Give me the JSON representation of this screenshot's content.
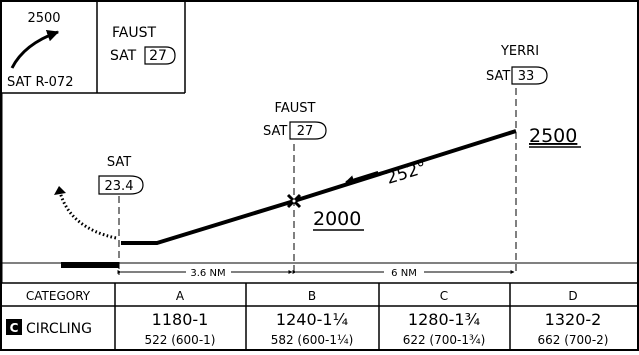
{
  "inset": {
    "altitude": "2500",
    "radial": "SAT R-072",
    "fix_name": "FAUST",
    "fix_nav": "SAT",
    "fix_dme": "27"
  },
  "profile": {
    "fixes": [
      {
        "name": "YERRI",
        "nav": "SAT",
        "dme": "33"
      },
      {
        "name": "FAUST",
        "nav": "SAT",
        "dme": "27"
      },
      {
        "name": "SAT",
        "nav": "",
        "dme": "23.4"
      }
    ],
    "course": "252°",
    "altitude_high": "2500",
    "altitude_low": "2000",
    "distance_1": "3.6 NM",
    "distance_2": "6 NM"
  },
  "minimums": {
    "header": [
      "CATEGORY",
      "A",
      "B",
      "C",
      "D"
    ],
    "row_icon": "C",
    "row_label": "CIRCLING",
    "cells": [
      {
        "main": "1180-1",
        "sub": "522 (600-1)"
      },
      {
        "main": "1240-1¼",
        "sub": "582 (600-1¼)"
      },
      {
        "main": "1280-1¾",
        "sub": "622 (700-1¾)"
      },
      {
        "main": "1320-2",
        "sub": "662 (700-2)"
      }
    ]
  }
}
